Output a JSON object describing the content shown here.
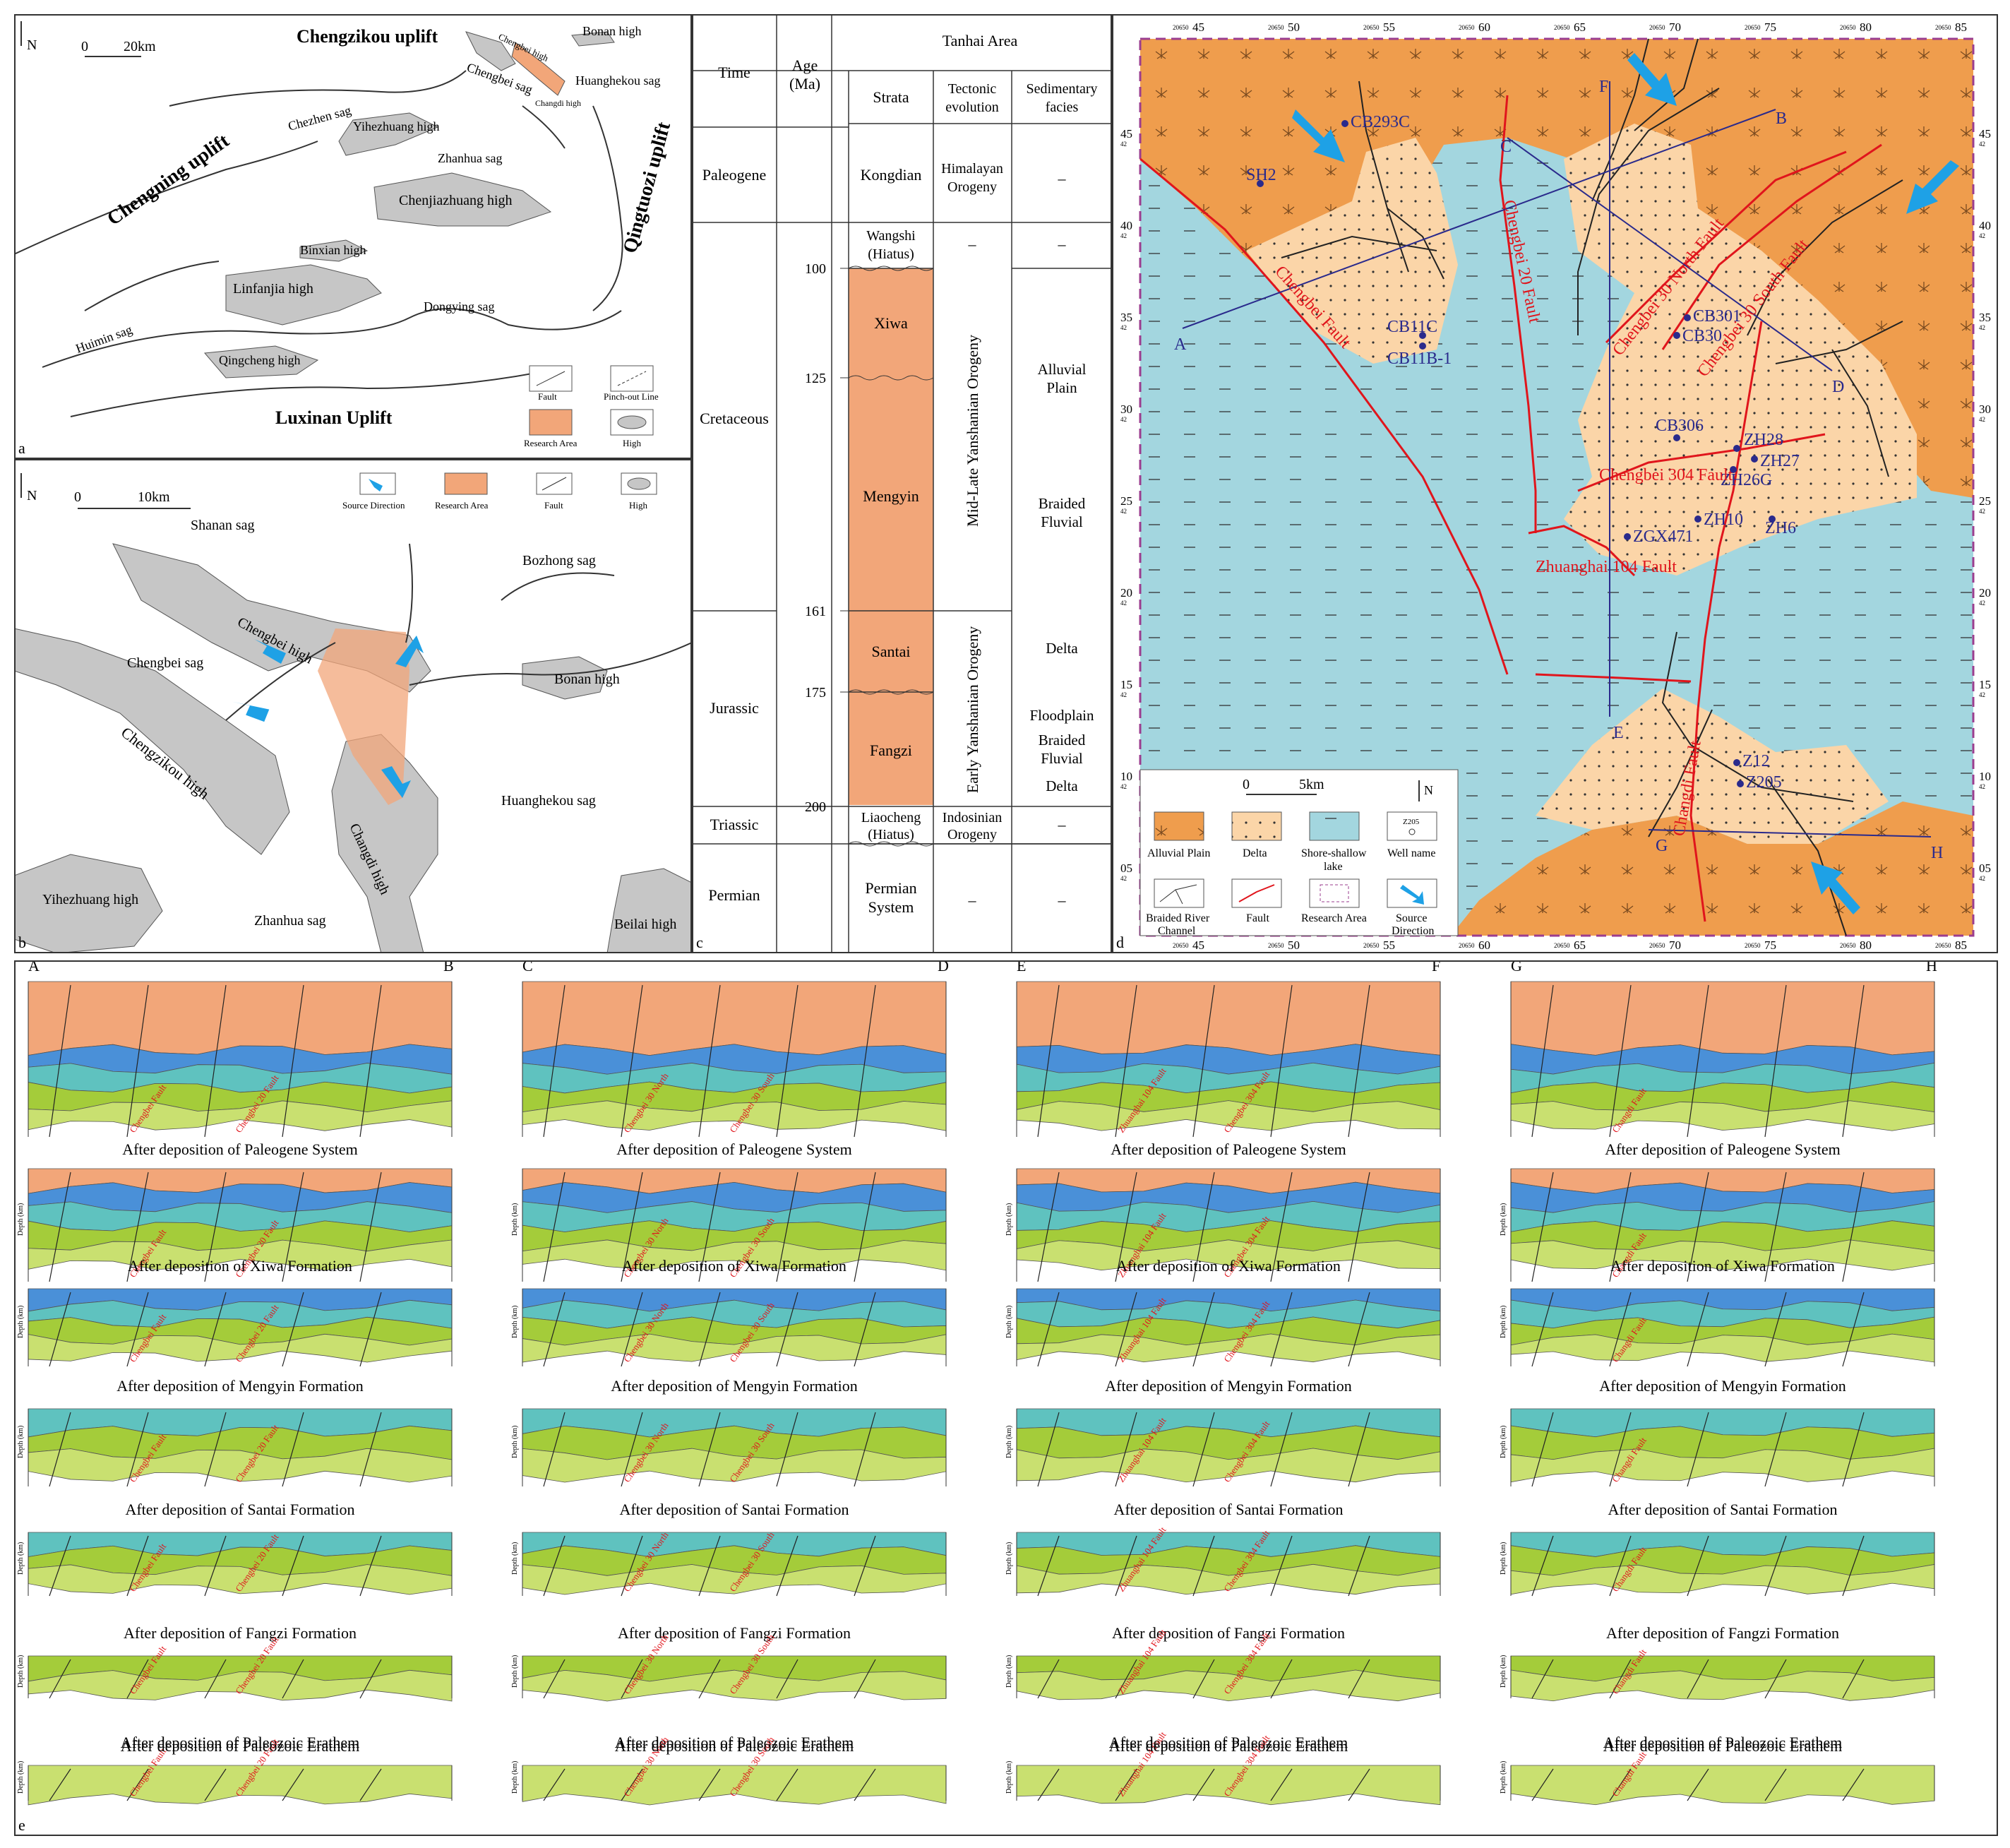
{
  "panel_a": {
    "letter": "a",
    "north": "N",
    "scale": {
      "zero": "0",
      "end": "20km"
    },
    "uplifts": {
      "chengzikou": "Chengzikou uplift",
      "chengning": "Chengning uplift",
      "qingtuozi": "Qingtuozi uplift",
      "luxinan": "Luxinan Uplift"
    },
    "labels": {
      "chengbei_sag": "Chengbei sag",
      "chengbei_high": "Chengbei high",
      "bonan_high": "Bonan high",
      "huanghekou_sag": "Huanghekou sag",
      "changdi_high": "Changdi high",
      "chezhen_sag": "Chezhen sag",
      "yihezhuang_high": "Yihezhuang high",
      "zhanhua_sag": "Zhanhua sag",
      "chenjiazhuang_high": "Chenjiazhuang high",
      "binxian_high": "Binxian high",
      "linfanjia_high": "Linfanjia high",
      "dongying_sag": "Dongying sag",
      "huimin_sag": "Huimin sag",
      "qingcheng_high": "Qingcheng high"
    },
    "legend": {
      "fault": "Fault",
      "pinchout": "Pinch-out Line",
      "research": "Research Area",
      "high": "High"
    }
  },
  "panel_b": {
    "letter": "b",
    "north": "N",
    "scale": {
      "zero": "0",
      "end": "10km"
    },
    "legend": {
      "source": "Source Direction",
      "research": "Research Area",
      "fault": "Fault",
      "high": "High"
    },
    "labels": {
      "shanan_sag": "Shanan sag",
      "bozhong_sag": "Bozhong sag",
      "chengbei_sag": "Chengbei sag",
      "chengbei_high": "Chengbei high",
      "bonan_high": "Bonan high",
      "chengzikou_high": "Chengzikou high",
      "huanghekou_sag": "Huanghekou sag",
      "changdi_high": "Changdi high",
      "yihezhuang_high": "Yihezhuang high",
      "zhanhua_sag": "Zhanhua sag",
      "beilai_high": "Beilai high"
    }
  },
  "panel_c": {
    "letter": "c",
    "headers": {
      "time": "Time",
      "age": "Age",
      "age_unit": "(Ma)",
      "area": "Tanhai Area",
      "strata": "Strata",
      "tectonic_1": "Tectonic",
      "tectonic_2": "evolution",
      "facies_1": "Sedimentary",
      "facies_2": "facies"
    },
    "periods": {
      "paleogene": "Paleogene",
      "cretaceous": "Cretaceous",
      "jurassic": "Jurassic",
      "triassic": "Triassic",
      "permian": "Permian"
    },
    "ages": [
      "100",
      "125",
      "161",
      "175",
      "200"
    ],
    "strata": {
      "kongdian": "Kongdian",
      "wangshi_1": "Wangshi",
      "wangshi_2": "(Hiatus)",
      "xiwa": "Xiwa",
      "mengyin": "Mengyin",
      "santai": "Santai",
      "fangzi": "Fangzi",
      "liaocheng_1": "Liaocheng",
      "liaocheng_2": "(Hiatus)",
      "permian_1": "Permian",
      "permian_2": "System"
    },
    "tectonic": {
      "himalayan_1": "Himalayan",
      "himalayan_2": "Orogeny",
      "mid_late": "Mid-Late Yanshanian Orogeny",
      "early": "Early Yanshanian Orogeny",
      "indosinian_1": "Indosinian",
      "indosinian_2": "Orogeny",
      "dash": "–"
    },
    "facies": {
      "alluvial_1": "Alluvial",
      "alluvial_2": "Plain",
      "braided_1": "Braided",
      "braided_2": "Fluvial",
      "delta": "Delta",
      "floodplain": "Floodplain",
      "braided_3": "Braided",
      "braided_4": "Fluvial",
      "delta_2": "Delta",
      "dash": "–"
    }
  },
  "panel_d": {
    "letter": "d",
    "top_ticks": [
      "45",
      "50",
      "55",
      "60",
      "65",
      "70",
      "75",
      "80",
      "85"
    ],
    "tick_prefix": "20650",
    "left_ticks": [
      "45",
      "40",
      "35",
      "30",
      "25",
      "20",
      "15",
      "10",
      "05"
    ],
    "tick_sub": "42",
    "wells": {
      "cb293c": "CB293C",
      "sh2": "SH2",
      "cb11c": "CB11C",
      "cb11b": "CB11B-1",
      "cb301": "CB301",
      "cb30": "CB30",
      "cb306": "CB306",
      "zh28": "ZH28",
      "zh27": "ZH27",
      "zh26g": "ZH26G",
      "zh10": "ZH10",
      "zh6": "ZH6",
      "zgx471": "ZGX471",
      "z12": "Z12",
      "z205": "Z205"
    },
    "faults": {
      "chengbei": "Chengbei Fault",
      "chengbei20": "Chengbei 20 Fault",
      "cb30n": "Chengbei 30 North Fault",
      "cb30s": "Chengbei 30 South Fault",
      "cb304": "Chengbei 304 Fault",
      "zh104": "Zhuanghai 104 Fault",
      "changdi": "Changdi Fault"
    },
    "section_letters": {
      "a": "A",
      "b": "B",
      "c": "C",
      "d": "D",
      "e": "E",
      "f": "F",
      "g": "G",
      "h": "H"
    },
    "legend": {
      "scale_zero": "0",
      "scale_end": "5km",
      "north": "N",
      "alluvial": "Alluvial Plain",
      "delta": "Delta",
      "lake_1": "Shore-shallow",
      "lake_2": "lake",
      "well": "Well name",
      "well_sample": "Z205",
      "braided_1": "Braided River",
      "braided_2": "Channel",
      "fault": "Fault",
      "research": "Research Area",
      "source_1": "Source",
      "source_2": "Direction"
    }
  },
  "panel_e": {
    "letter": "e",
    "stages": [
      "After deposition of Paleogene System",
      "After deposition of Xiwa Formation",
      "After deposition of Mengyin Formation",
      "After deposition of Santai Formation",
      "After deposition of Fangzi Formation",
      "After deposition of Paleozoic Erathem"
    ],
    "depth_label": "Depth (km)",
    "sections": [
      {
        "left": "A",
        "right": "B",
        "faults": [
          "Chengbei Fault",
          "Chengbei 20 Fault"
        ]
      },
      {
        "left": "C",
        "right": "D",
        "faults": [
          "Chengbei 30 North",
          "Chengbei 30 South"
        ]
      },
      {
        "left": "E",
        "right": "F",
        "faults": [
          "Zhuanghai 104 Fault",
          "Chengbei 304 Fault"
        ]
      },
      {
        "left": "G",
        "right": "H",
        "faults": [
          "Changdi Fault"
        ]
      }
    ]
  },
  "colors": {
    "orange": "#f2a679",
    "alluvial": "#ef9d4d",
    "delta": "#fbd5a8",
    "lake": "#a3d6df",
    "high": "#c6c6c6",
    "blue_fault": "#2a2a8c",
    "red_fault": "#e0151c",
    "arrow": "#1ea1e6",
    "green": "#a4cc3a",
    "teal": "#5fc2bf",
    "blue": "#4a90d8",
    "lightgreen": "#c9e070"
  }
}
